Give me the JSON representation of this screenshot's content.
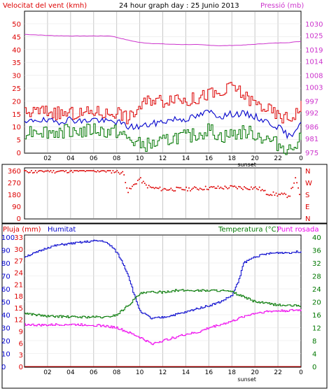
{
  "chart_data": [
    {
      "type": "line",
      "title": "24 hour graph day : 25 Junio 2013",
      "left_label": "Velocitat del vent (kmh)",
      "right_label": "Pressió (mb)",
      "x_ticks": [
        "02",
        "04",
        "06",
        "08",
        "10",
        "12",
        "14",
        "16",
        "18",
        "20",
        "22",
        "0"
      ],
      "annotation": "sunset",
      "left_axis": {
        "ticks": [
          0,
          5,
          10,
          15,
          20,
          25,
          30,
          35,
          40,
          45,
          50
        ],
        "range": [
          0,
          50
        ]
      },
      "right_axis": {
        "ticks": [
          975,
          981,
          986,
          992,
          997,
          1003,
          1008,
          1014,
          1019,
          1025,
          1030
        ],
        "range": [
          975,
          1030
        ]
      },
      "series": [
        {
          "name": "pressure",
          "color": "#cc33cc",
          "axis": "right",
          "x": [
            0,
            2,
            4,
            6,
            7.5,
            9,
            10,
            11,
            13,
            15,
            17,
            19,
            21,
            23,
            24
          ],
          "y": [
            1025.5,
            1025,
            1024.8,
            1024.8,
            1024.8,
            1023,
            1022,
            1021.6,
            1021.2,
            1021.1,
            1020.6,
            1020.9,
            1021.6,
            1022,
            1022.5
          ]
        },
        {
          "name": "gust",
          "color": "#dd0000",
          "axis": "left",
          "x": [
            0,
            1,
            2,
            3,
            4,
            5,
            6,
            7,
            8,
            9,
            10,
            11,
            12,
            13,
            14,
            15,
            16,
            17,
            18,
            19,
            20,
            21,
            22,
            23,
            24
          ],
          "y": [
            15,
            16,
            16,
            15,
            15,
            15,
            16,
            15,
            16,
            13,
            18,
            21,
            20,
            22,
            20,
            21,
            23,
            22,
            26,
            22,
            19,
            17,
            14,
            13,
            18
          ]
        },
        {
          "name": "avg",
          "color": "#0000cc",
          "axis": "left",
          "x": [
            0,
            1,
            2,
            3,
            4,
            5,
            6,
            7,
            8,
            9,
            10,
            11,
            12,
            13,
            14,
            15,
            16,
            17,
            18,
            19,
            20,
            21,
            22,
            23,
            24
          ],
          "y": [
            11,
            13,
            12,
            12,
            13,
            12,
            13,
            12,
            12,
            10,
            10,
            11,
            12,
            13,
            13,
            14,
            16,
            14,
            15,
            15,
            14,
            12,
            10,
            6,
            12
          ]
        },
        {
          "name": "lull",
          "color": "#007700",
          "axis": "left",
          "x": [
            0,
            1,
            2,
            3,
            4,
            5,
            6,
            7,
            8,
            9,
            10,
            11,
            12,
            13,
            14,
            15,
            16,
            17,
            18,
            19,
            20,
            21,
            22,
            23,
            24
          ],
          "y": [
            8,
            9,
            8,
            8,
            9,
            8,
            9,
            8,
            8,
            5,
            3,
            3,
            4,
            6,
            6,
            7,
            9,
            6,
            7,
            8,
            7,
            5,
            3,
            1,
            7
          ]
        }
      ]
    },
    {
      "type": "scatter",
      "left_axis": {
        "ticks": [
          0,
          90,
          180,
          270,
          360
        ],
        "range": [
          0,
          360
        ]
      },
      "right_axis": {
        "ticks": [
          "N",
          "W",
          "S",
          "E",
          "N"
        ]
      },
      "series": [
        {
          "name": "direction",
          "color": "#dd0000",
          "x": [
            0,
            1,
            2,
            3,
            4,
            5,
            6,
            7,
            8,
            8.6,
            9,
            9.5,
            10,
            10.5,
            11,
            12,
            13,
            14,
            15,
            16,
            17,
            18,
            19,
            20,
            20.5,
            21,
            22,
            23,
            23.5,
            24
          ],
          "y": [
            360,
            350,
            360,
            355,
            360,
            360,
            360,
            360,
            355,
            340,
            200,
            250,
            300,
            250,
            230,
            220,
            220,
            220,
            225,
            230,
            230,
            235,
            230,
            230,
            220,
            190,
            180,
            170,
            300,
            150
          ]
        }
      ]
    },
    {
      "type": "line",
      "label_rain": "Pluja (mm)",
      "label_humidity": "Humitat",
      "label_temperature": "Temperatura (°C)",
      "label_dewpoint": "Punt rosada",
      "x_ticks": [
        "02",
        "04",
        "06",
        "08",
        "10",
        "12",
        "14",
        "16",
        "18",
        "20",
        "22",
        "0"
      ],
      "annotation": "sunset",
      "humidity_axis": {
        "ticks": [
          0,
          10,
          20,
          30,
          40,
          50,
          60,
          70,
          80,
          90,
          100
        ],
        "range": [
          0,
          100
        ]
      },
      "rain_axis": {
        "ticks": [
          0,
          3,
          6,
          9,
          12,
          15,
          18,
          21,
          24,
          27,
          30,
          33
        ],
        "range": [
          0,
          33
        ]
      },
      "temp_axis": {
        "ticks": [
          0,
          4,
          8,
          12,
          16,
          20,
          24,
          28,
          32,
          36,
          40
        ],
        "range": [
          0,
          40
        ]
      },
      "series": [
        {
          "name": "humidity",
          "color": "#0000cc",
          "axis": "humidity",
          "x": [
            0,
            1,
            2,
            3,
            4,
            5,
            6,
            6.8,
            7.5,
            8,
            8.5,
            9,
            9.5,
            10,
            11,
            12,
            13,
            14,
            15,
            16,
            17,
            18,
            18.5,
            19,
            20,
            21,
            22,
            23,
            24
          ],
          "y": [
            85,
            88,
            92,
            94,
            95,
            96,
            97,
            97,
            93,
            88,
            80,
            70,
            55,
            43,
            37,
            38,
            40,
            42,
            45,
            47,
            50,
            55,
            65,
            80,
            85,
            87,
            88,
            88,
            89
          ]
        },
        {
          "name": "temperature",
          "color": "#007700",
          "axis": "temp",
          "x": [
            0,
            1,
            2,
            3,
            4,
            5,
            6,
            7,
            8,
            9,
            10,
            11,
            12,
            13,
            14,
            15,
            16,
            17,
            18,
            19,
            20,
            21,
            22,
            23,
            24
          ],
          "y": [
            16.5,
            16,
            15.5,
            15.5,
            15.3,
            15.3,
            15.3,
            15.2,
            16,
            19,
            22.5,
            23,
            23,
            23.5,
            23.5,
            23.5,
            23.5,
            23.5,
            23,
            21.5,
            20,
            19.5,
            19,
            18.8,
            18.8
          ]
        },
        {
          "name": "dewpoint",
          "color": "#ee00ee",
          "axis": "temp",
          "x": [
            0,
            1,
            2,
            3,
            4,
            5,
            6,
            7,
            8,
            9,
            10,
            11,
            12,
            13,
            14,
            15,
            16,
            17,
            18,
            19,
            20,
            21,
            22,
            23,
            24
          ],
          "y": [
            13,
            12.8,
            12.8,
            13,
            13,
            12.9,
            12.8,
            12.5,
            12,
            10.5,
            9,
            7,
            8,
            9,
            10,
            10.5,
            12,
            13,
            14,
            15.5,
            16.5,
            17,
            17.2,
            17.3,
            17.5
          ]
        },
        {
          "name": "rain",
          "color": "#dd0000",
          "axis": "rain",
          "x": [
            0,
            24
          ],
          "y": [
            0,
            0
          ]
        }
      ]
    }
  ]
}
